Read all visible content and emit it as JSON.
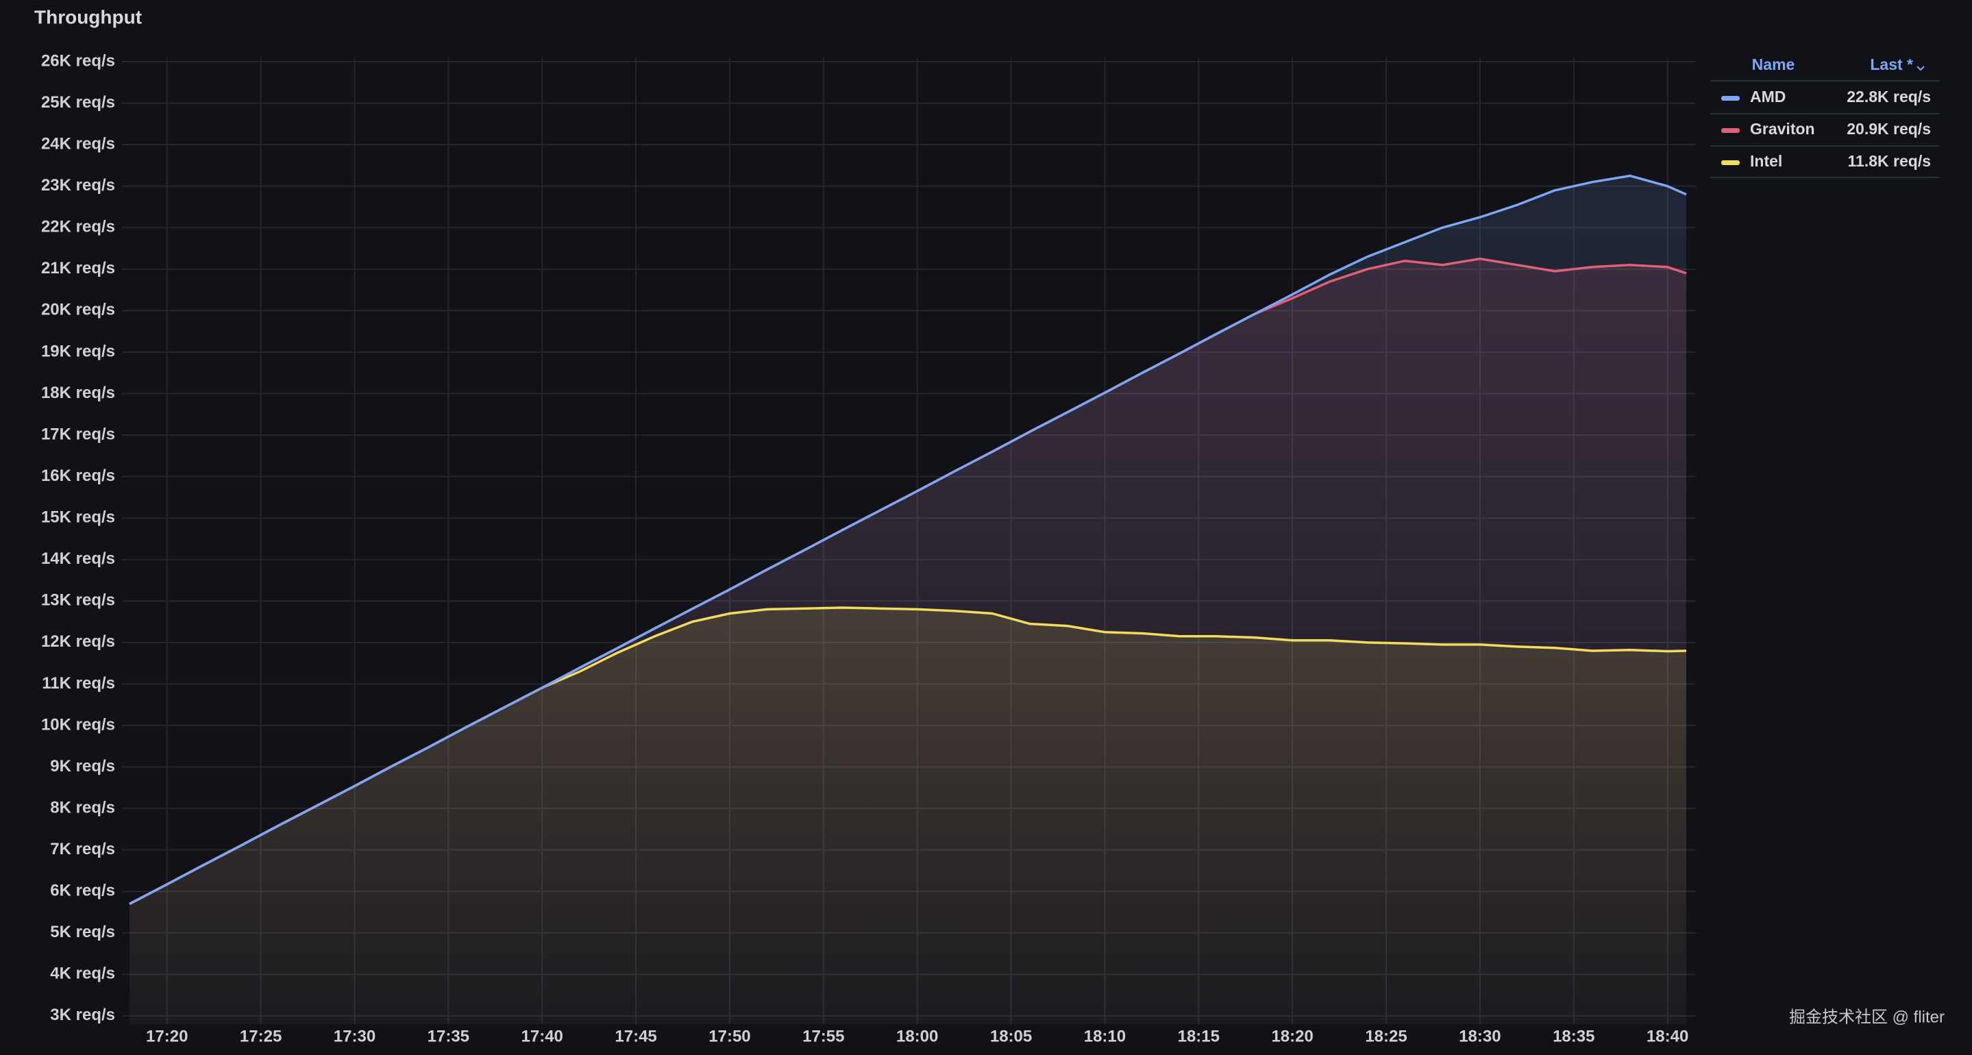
{
  "chart_data": {
    "type": "line",
    "title": "Throughput",
    "x": [
      "17:18",
      "17:20",
      "17:22",
      "17:24",
      "17:26",
      "17:28",
      "17:30",
      "17:32",
      "17:34",
      "17:36",
      "17:38",
      "17:40",
      "17:42",
      "17:44",
      "17:46",
      "17:48",
      "17:50",
      "17:52",
      "17:54",
      "17:56",
      "17:58",
      "18:00",
      "18:02",
      "18:04",
      "18:06",
      "18:08",
      "18:10",
      "18:12",
      "18:14",
      "18:16",
      "18:18",
      "18:20",
      "18:22",
      "18:24",
      "18:26",
      "18:28",
      "18:30",
      "18:32",
      "18:34",
      "18:36",
      "18:38",
      "18:40",
      "18:41"
    ],
    "xlim": [
      "17:18",
      "18:41"
    ],
    "xticks": [
      "17:20",
      "17:25",
      "17:30",
      "17:35",
      "17:40",
      "17:45",
      "17:50",
      "17:55",
      "18:00",
      "18:05",
      "18:10",
      "18:15",
      "18:20",
      "18:25",
      "18:30",
      "18:35",
      "18:40"
    ],
    "ylim": [
      2800,
      26100
    ],
    "yticks": [
      {
        "value": 3000,
        "label": "3K req/s"
      },
      {
        "value": 4000,
        "label": "4K req/s"
      },
      {
        "value": 5000,
        "label": "5K req/s"
      },
      {
        "value": 6000,
        "label": "6K req/s"
      },
      {
        "value": 7000,
        "label": "7K req/s"
      },
      {
        "value": 8000,
        "label": "8K req/s"
      },
      {
        "value": 9000,
        "label": "9K req/s"
      },
      {
        "value": 10000,
        "label": "10K req/s"
      },
      {
        "value": 11000,
        "label": "11K req/s"
      },
      {
        "value": 12000,
        "label": "12K req/s"
      },
      {
        "value": 13000,
        "label": "13K req/s"
      },
      {
        "value": 14000,
        "label": "14K req/s"
      },
      {
        "value": 15000,
        "label": "15K req/s"
      },
      {
        "value": 16000,
        "label": "16K req/s"
      },
      {
        "value": 17000,
        "label": "17K req/s"
      },
      {
        "value": 18000,
        "label": "18K req/s"
      },
      {
        "value": 19000,
        "label": "19K req/s"
      },
      {
        "value": 20000,
        "label": "20K req/s"
      },
      {
        "value": 21000,
        "label": "21K req/s"
      },
      {
        "value": 22000,
        "label": "22K req/s"
      },
      {
        "value": 23000,
        "label": "23K req/s"
      },
      {
        "value": 24000,
        "label": "24K req/s"
      },
      {
        "value": 25000,
        "label": "25K req/s"
      },
      {
        "value": 26000,
        "label": "26K req/s"
      }
    ],
    "grid": true,
    "legend": {
      "position": "right",
      "headers": [
        "Name",
        "Last *"
      ]
    },
    "series": [
      {
        "name": "AMD",
        "color": "#7ea6f2",
        "last_label": "22.8K req/s",
        "values": [
          5700,
          6170,
          6650,
          7120,
          7600,
          8070,
          8540,
          9020,
          9490,
          9970,
          10440,
          10910,
          11390,
          11860,
          12340,
          12810,
          13280,
          13760,
          14230,
          14710,
          15180,
          15650,
          16130,
          16600,
          17080,
          17550,
          18020,
          18500,
          18970,
          19450,
          19920,
          20390,
          20870,
          21300,
          21650,
          22000,
          22250,
          22550,
          22900,
          23100,
          23250,
          23000,
          22800
        ]
      },
      {
        "name": "Graviton",
        "color": "#e0607a",
        "last_label": "20.9K req/s",
        "values": [
          5700,
          6170,
          6650,
          7120,
          7600,
          8070,
          8540,
          9020,
          9490,
          9970,
          10440,
          10910,
          11390,
          11860,
          12340,
          12810,
          13280,
          13760,
          14230,
          14710,
          15180,
          15650,
          16130,
          16600,
          17080,
          17550,
          18020,
          18500,
          18970,
          19450,
          19920,
          20300,
          20700,
          21000,
          21200,
          21100,
          21250,
          21100,
          20950,
          21050,
          21100,
          21050,
          20900
        ]
      },
      {
        "name": "Intel",
        "color": "#f2dc5d",
        "last_label": "11.8K req/s",
        "values": [
          5700,
          6170,
          6650,
          7120,
          7600,
          8070,
          8540,
          9020,
          9490,
          9970,
          10440,
          10910,
          11300,
          11750,
          12150,
          12500,
          12700,
          12800,
          12820,
          12840,
          12820,
          12800,
          12760,
          12700,
          12450,
          12400,
          12250,
          12220,
          12150,
          12150,
          12120,
          12050,
          12050,
          12000,
          11980,
          11950,
          11950,
          11900,
          11870,
          11800,
          11820,
          11790,
          11800
        ]
      }
    ]
  },
  "watermark": "掘金技术社区 @ fliter"
}
